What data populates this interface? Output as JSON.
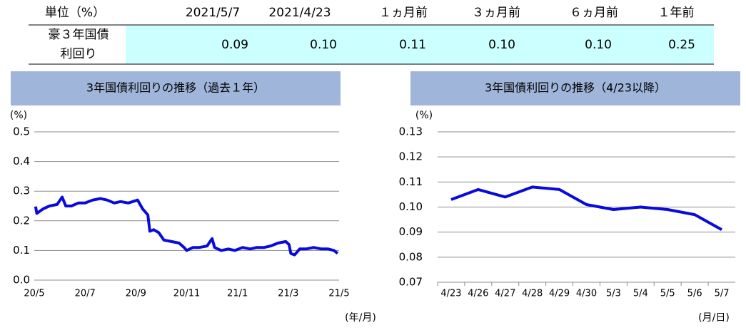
{
  "table": {
    "header": [
      "単位（%）",
      "2021/5/7",
      "2021/4/23",
      "１ヵ月前",
      "３ヵ月前",
      "６ヵ月前",
      "１年前"
    ],
    "rows": [
      {
        "label": [
          "豪３年国債",
          "利回り"
        ],
        "cells": [
          "0.09",
          "0.10",
          "0.11",
          "0.10",
          "0.10",
          "0.25"
        ]
      }
    ]
  },
  "chart_data": [
    {
      "type": "line",
      "title": "3年国債利回りの推移（過去１年）",
      "y_unit": "(%)",
      "x_unit": "(年/月)",
      "color": "#0a0adc",
      "grid": true,
      "x": [
        0.05,
        0.1,
        0.34,
        0.6,
        0.9,
        1.1,
        1.24,
        1.46,
        1.74,
        2.0,
        2.3,
        2.6,
        2.87,
        3.15,
        3.4,
        3.7,
        4.07,
        4.27,
        4.47,
        4.55,
        4.7,
        4.9,
        5.1,
        5.4,
        5.7,
        5.9,
        6.0,
        6.25,
        6.5,
        6.8,
        7.0,
        7.1,
        7.36,
        7.64,
        7.9,
        8.2,
        8.5,
        8.76,
        9.05,
        9.3,
        9.6,
        9.9,
        10.03,
        10.1,
        10.25,
        10.45,
        10.7,
        11.0,
        11.3,
        11.57,
        11.8,
        11.94
      ],
      "values": [
        0.248,
        0.225,
        0.24,
        0.25,
        0.255,
        0.28,
        0.25,
        0.25,
        0.26,
        0.26,
        0.27,
        0.275,
        0.27,
        0.26,
        0.265,
        0.26,
        0.27,
        0.24,
        0.22,
        0.165,
        0.17,
        0.16,
        0.135,
        0.13,
        0.125,
        0.11,
        0.1,
        0.11,
        0.11,
        0.115,
        0.14,
        0.11,
        0.1,
        0.105,
        0.1,
        0.11,
        0.105,
        0.11,
        0.11,
        0.115,
        0.125,
        0.13,
        0.12,
        0.09,
        0.085,
        0.105,
        0.105,
        0.11,
        0.105,
        0.105,
        0.1,
        0.09
      ],
      "xlim": [
        0,
        12
      ],
      "xticks": [
        {
          "value": 0,
          "label": "20/5"
        },
        {
          "value": 2,
          "label": "20/7"
        },
        {
          "value": 4,
          "label": "20/9"
        },
        {
          "value": 6,
          "label": "20/11"
        },
        {
          "value": 8,
          "label": "21/1"
        },
        {
          "value": 10,
          "label": "21/3"
        },
        {
          "value": 12,
          "label": "21/5"
        }
      ],
      "ylim": [
        0,
        0.5
      ],
      "yticks": [
        {
          "value": 0,
          "label": "0.0"
        },
        0.1,
        0.2,
        0.3,
        0.4,
        0.5
      ]
    },
    {
      "type": "line",
      "title": "3年国債利回りの推移（4/23以降）",
      "y_unit": "(%)",
      "x_unit": "(月/日)",
      "color": "#0a0adc",
      "grid": true,
      "categories": [
        "4/23",
        "4/26",
        "4/27",
        "4/28",
        "4/29",
        "4/30",
        "5/3",
        "5/4",
        "5/5",
        "5/6",
        "5/7"
      ],
      "values": [
        0.103,
        0.107,
        0.104,
        0.108,
        0.107,
        0.101,
        0.099,
        0.1,
        0.099,
        0.097,
        0.091
      ],
      "ylim": [
        0.07,
        0.13
      ],
      "yticks": [
        0.07,
        0.08,
        0.09,
        {
          "value": 0.1,
          "label": "0.10"
        },
        0.11,
        0.12,
        0.13
      ]
    }
  ]
}
